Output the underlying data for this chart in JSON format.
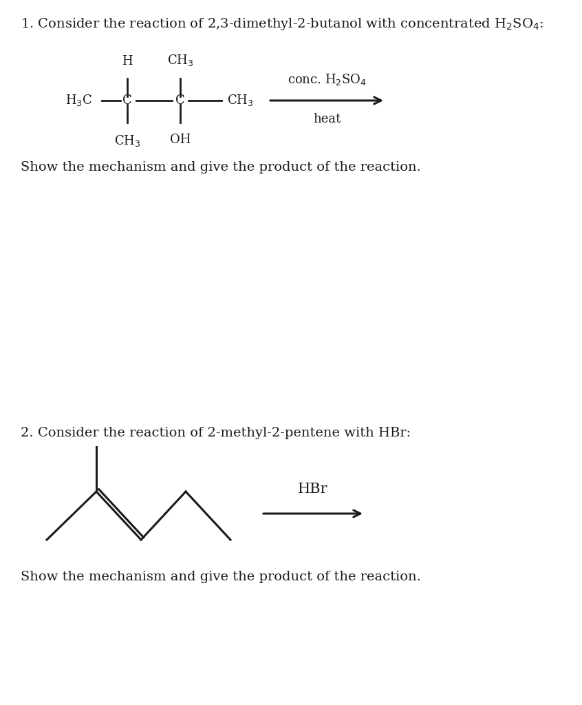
{
  "bg_color": "#ffffff",
  "text_color": "#1a1a1a",
  "font_size_title": 14,
  "font_size_struct": 13,
  "font_size_reagent": 13,
  "font_size_show": 14,
  "q1_show": "Show the mechanism and give the product of the reaction.",
  "q2_title": "2. Consider the reaction of 2-methyl-2-pentene with HBr:",
  "q2_reagent": "HBr",
  "q2_show": "Show the mechanism and give the product of the reaction."
}
